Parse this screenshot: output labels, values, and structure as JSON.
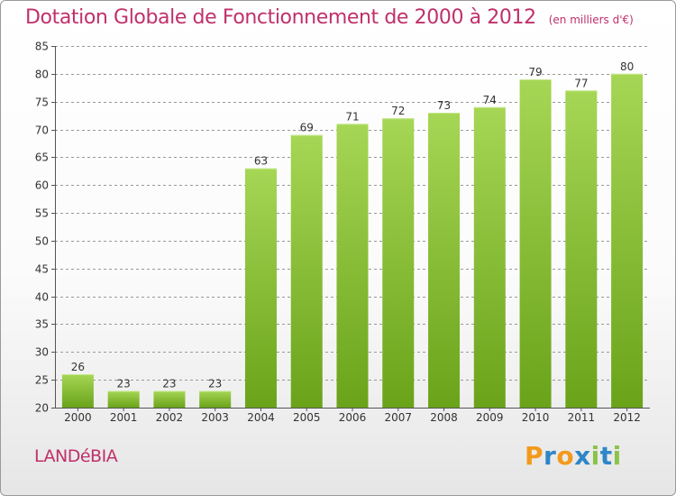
{
  "title": "Dotation Globale de Fonctionnement de 2000 à 2012",
  "subtitle": "(en milliers d'€)",
  "commune": "LANDéBIA",
  "logo": {
    "text": "Proxiti",
    "letters": [
      "P",
      "r",
      "o",
      "x",
      "i",
      "t",
      "i"
    ],
    "colors": [
      "#f39a1b",
      "#2e86c8",
      "#f39a1b",
      "#2e86c8",
      "#8bc34a",
      "#2e86c8",
      "#8bc34a"
    ]
  },
  "colors": {
    "title": "#c0306a",
    "bar_top": "#a6d655",
    "bar_bottom": "#6aa31a",
    "grid": "#999999"
  },
  "chart_data": {
    "type": "bar",
    "title": "Dotation Globale de Fonctionnement de 2000 à 2012",
    "subtitle": "(en milliers d'€)",
    "categories": [
      "2000",
      "2001",
      "2002",
      "2003",
      "2004",
      "2005",
      "2006",
      "2007",
      "2008",
      "2009",
      "2010",
      "2011",
      "2012"
    ],
    "values": [
      26,
      23,
      23,
      23,
      63,
      69,
      71,
      72,
      73,
      74,
      79,
      77,
      80
    ],
    "ylim": [
      20,
      85
    ],
    "yticks": [
      20,
      25,
      30,
      35,
      40,
      45,
      50,
      55,
      60,
      65,
      70,
      75,
      80,
      85
    ],
    "grid": true,
    "grid_style": "dashed"
  }
}
